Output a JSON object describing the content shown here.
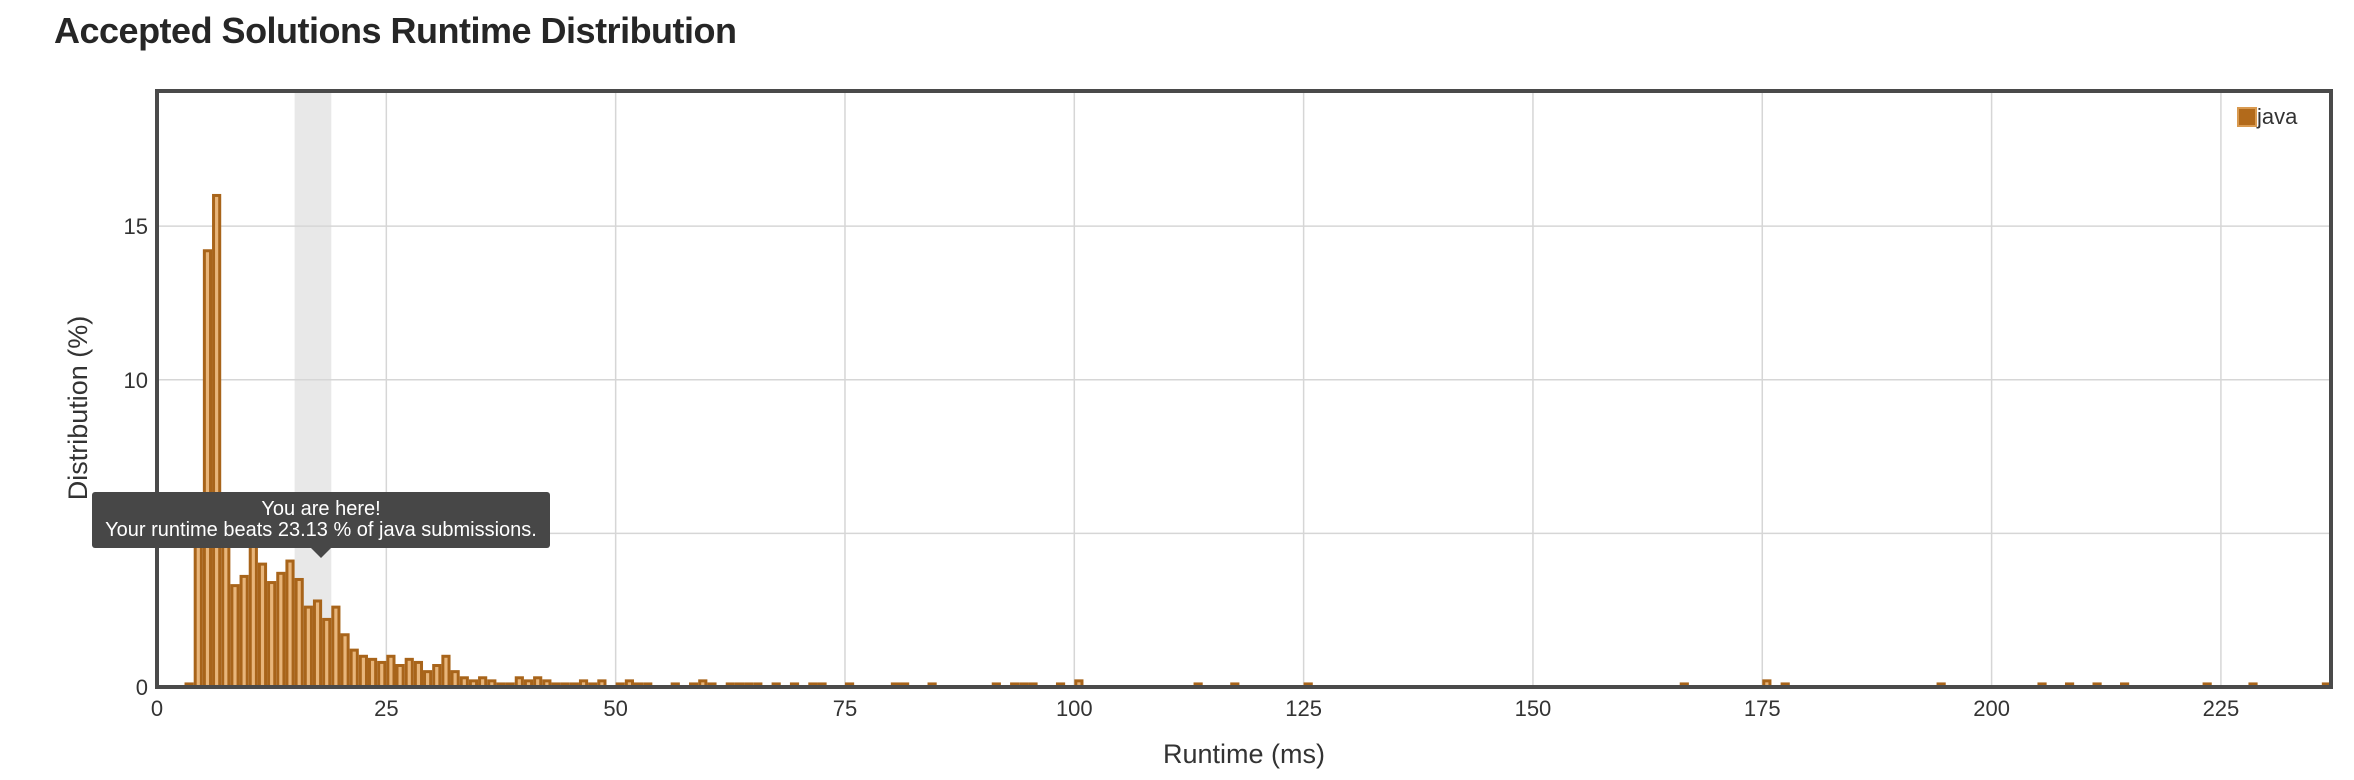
{
  "title": "Accepted Solutions Runtime Distribution",
  "tooltip": {
    "line1": "You are here!",
    "line2": "Your runtime beats 23.13 % of java submissions."
  },
  "colors": {
    "bar_fill": "#e8b57a",
    "bar_stroke": "#a8641a",
    "legend_swatch": "#b26a1b",
    "highlight_band": "#e8e8e8",
    "grid": "#d6d6d6",
    "frame": "#4a4a4a",
    "tooltip_bg": "#474747"
  },
  "chart_data": {
    "type": "bar",
    "xlabel": "Runtime (ms)",
    "ylabel": "Distribution (%)",
    "xlim": [
      0,
      237
    ],
    "ylim": [
      0,
      19.4
    ],
    "xticks": [
      0,
      25,
      50,
      75,
      100,
      125,
      150,
      175,
      200,
      225
    ],
    "yticks": [
      0,
      5,
      10,
      15
    ],
    "grid": true,
    "legend": {
      "position": "top-right",
      "entries": [
        "java"
      ]
    },
    "highlight_range": [
      15,
      19
    ],
    "your_runtime_percentile": 23.13,
    "series": [
      {
        "name": "java",
        "bars": [
          {
            "x": 3,
            "y": 0.1
          },
          {
            "x": 4,
            "y": 5.0
          },
          {
            "x": 5,
            "y": 14.2
          },
          {
            "x": 6,
            "y": 16.0
          },
          {
            "x": 7,
            "y": 4.9
          },
          {
            "x": 8,
            "y": 3.3
          },
          {
            "x": 9,
            "y": 3.6
          },
          {
            "x": 10,
            "y": 4.9
          },
          {
            "x": 11,
            "y": 4.0
          },
          {
            "x": 12,
            "y": 3.4
          },
          {
            "x": 13,
            "y": 3.7
          },
          {
            "x": 14,
            "y": 4.1
          },
          {
            "x": 15,
            "y": 3.5
          },
          {
            "x": 16,
            "y": 2.6
          },
          {
            "x": 17,
            "y": 2.8
          },
          {
            "x": 18,
            "y": 2.2
          },
          {
            "x": 19,
            "y": 2.6
          },
          {
            "x": 20,
            "y": 1.7
          },
          {
            "x": 21,
            "y": 1.2
          },
          {
            "x": 22,
            "y": 1.0
          },
          {
            "x": 23,
            "y": 0.9
          },
          {
            "x": 24,
            "y": 0.8
          },
          {
            "x": 25,
            "y": 1.0
          },
          {
            "x": 26,
            "y": 0.7
          },
          {
            "x": 27,
            "y": 0.9
          },
          {
            "x": 28,
            "y": 0.8
          },
          {
            "x": 29,
            "y": 0.5
          },
          {
            "x": 30,
            "y": 0.7
          },
          {
            "x": 31,
            "y": 1.0
          },
          {
            "x": 32,
            "y": 0.5
          },
          {
            "x": 33,
            "y": 0.3
          },
          {
            "x": 34,
            "y": 0.2
          },
          {
            "x": 35,
            "y": 0.3
          },
          {
            "x": 36,
            "y": 0.2
          },
          {
            "x": 37,
            "y": 0.1
          },
          {
            "x": 38,
            "y": 0.1
          },
          {
            "x": 39,
            "y": 0.3
          },
          {
            "x": 40,
            "y": 0.2
          },
          {
            "x": 41,
            "y": 0.3
          },
          {
            "x": 42,
            "y": 0.2
          },
          {
            "x": 43,
            "y": 0.1
          },
          {
            "x": 44,
            "y": 0.1
          },
          {
            "x": 45,
            "y": 0.1
          },
          {
            "x": 46,
            "y": 0.2
          },
          {
            "x": 47,
            "y": 0.1
          },
          {
            "x": 48,
            "y": 0.2
          },
          {
            "x": 50,
            "y": 0.1
          },
          {
            "x": 51,
            "y": 0.2
          },
          {
            "x": 52,
            "y": 0.1
          },
          {
            "x": 53,
            "y": 0.1
          },
          {
            "x": 56,
            "y": 0.1
          },
          {
            "x": 58,
            "y": 0.1
          },
          {
            "x": 59,
            "y": 0.2
          },
          {
            "x": 60,
            "y": 0.1
          },
          {
            "x": 62,
            "y": 0.1
          },
          {
            "x": 63,
            "y": 0.1
          },
          {
            "x": 64,
            "y": 0.1
          },
          {
            "x": 65,
            "y": 0.1
          },
          {
            "x": 67,
            "y": 0.1
          },
          {
            "x": 69,
            "y": 0.1
          },
          {
            "x": 71,
            "y": 0.1
          },
          {
            "x": 72,
            "y": 0.1
          },
          {
            "x": 75,
            "y": 0.1
          },
          {
            "x": 80,
            "y": 0.1
          },
          {
            "x": 81,
            "y": 0.1
          },
          {
            "x": 84,
            "y": 0.1
          },
          {
            "x": 91,
            "y": 0.1
          },
          {
            "x": 93,
            "y": 0.1
          },
          {
            "x": 94,
            "y": 0.1
          },
          {
            "x": 95,
            "y": 0.1
          },
          {
            "x": 98,
            "y": 0.1
          },
          {
            "x": 100,
            "y": 0.2
          },
          {
            "x": 113,
            "y": 0.1
          },
          {
            "x": 117,
            "y": 0.1
          },
          {
            "x": 125,
            "y": 0.1
          },
          {
            "x": 166,
            "y": 0.1
          },
          {
            "x": 175,
            "y": 0.2
          },
          {
            "x": 177,
            "y": 0.1
          },
          {
            "x": 194,
            "y": 0.1
          },
          {
            "x": 205,
            "y": 0.1
          },
          {
            "x": 208,
            "y": 0.1
          },
          {
            "x": 211,
            "y": 0.1
          },
          {
            "x": 214,
            "y": 0.1
          },
          {
            "x": 223,
            "y": 0.1
          },
          {
            "x": 228,
            "y": 0.1
          },
          {
            "x": 236,
            "y": 0.1
          }
        ]
      }
    ]
  }
}
